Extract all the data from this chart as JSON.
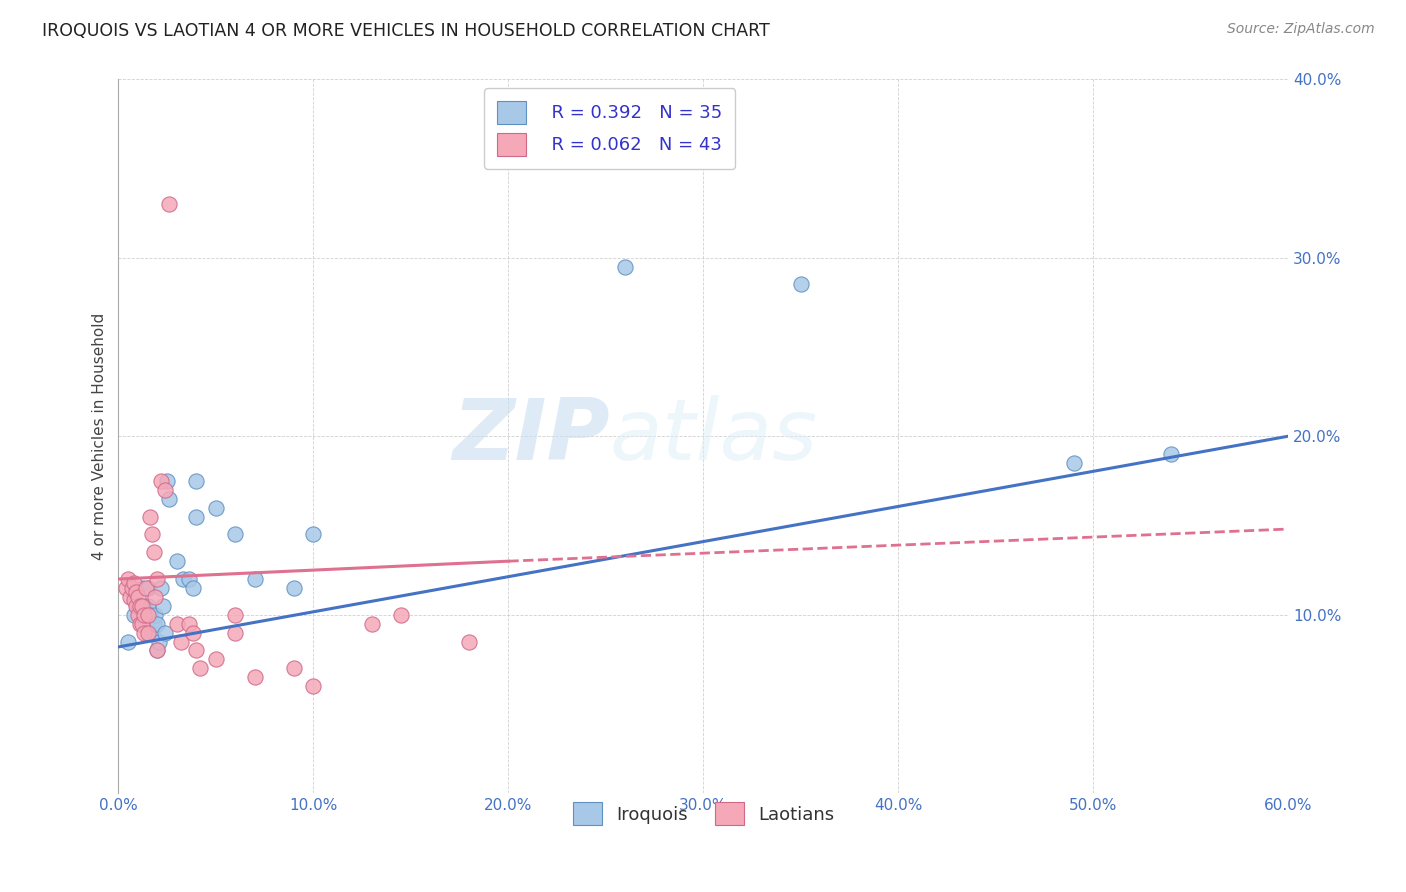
{
  "title": "IROQUOIS VS LAOTIAN 4 OR MORE VEHICLES IN HOUSEHOLD CORRELATION CHART",
  "source": "Source: ZipAtlas.com",
  "ylabel": "4 or more Vehicles in Household",
  "xlabel": "",
  "xlim": [
    0.0,
    0.6
  ],
  "ylim": [
    0.0,
    0.4
  ],
  "xtick_vals": [
    0.0,
    0.1,
    0.2,
    0.3,
    0.4,
    0.5,
    0.6
  ],
  "ytick_vals": [
    0.0,
    0.1,
    0.2,
    0.3,
    0.4
  ],
  "background_color": "#ffffff",
  "watermark_zip": "ZIP",
  "watermark_atlas": "atlas",
  "legend_r_iroquois": "R = 0.392",
  "legend_n_iroquois": "N = 35",
  "legend_r_laotian": "R = 0.062",
  "legend_n_laotian": "N = 43",
  "iroquois_color": "#a8c8e8",
  "laotian_color": "#f4a8b8",
  "iroquois_edge": "#6090c0",
  "laotian_edge": "#d06888",
  "iroquois_line_color": "#4472c4",
  "laotian_line_color": "#e07090",
  "iroquois_scatter": [
    [
      0.005,
      0.085
    ],
    [
      0.008,
      0.1
    ],
    [
      0.01,
      0.105
    ],
    [
      0.012,
      0.115
    ],
    [
      0.013,
      0.105
    ],
    [
      0.014,
      0.095
    ],
    [
      0.015,
      0.105
    ],
    [
      0.015,
      0.115
    ],
    [
      0.016,
      0.1
    ],
    [
      0.017,
      0.09
    ],
    [
      0.018,
      0.095
    ],
    [
      0.019,
      0.1
    ],
    [
      0.02,
      0.08
    ],
    [
      0.02,
      0.095
    ],
    [
      0.021,
      0.085
    ],
    [
      0.022,
      0.115
    ],
    [
      0.023,
      0.105
    ],
    [
      0.024,
      0.09
    ],
    [
      0.025,
      0.175
    ],
    [
      0.026,
      0.165
    ],
    [
      0.03,
      0.13
    ],
    [
      0.033,
      0.12
    ],
    [
      0.036,
      0.12
    ],
    [
      0.038,
      0.115
    ],
    [
      0.04,
      0.175
    ],
    [
      0.04,
      0.155
    ],
    [
      0.05,
      0.16
    ],
    [
      0.06,
      0.145
    ],
    [
      0.07,
      0.12
    ],
    [
      0.09,
      0.115
    ],
    [
      0.1,
      0.145
    ],
    [
      0.26,
      0.295
    ],
    [
      0.35,
      0.285
    ],
    [
      0.49,
      0.185
    ],
    [
      0.54,
      0.19
    ]
  ],
  "laotian_scatter": [
    [
      0.004,
      0.115
    ],
    [
      0.005,
      0.12
    ],
    [
      0.006,
      0.11
    ],
    [
      0.007,
      0.115
    ],
    [
      0.008,
      0.108
    ],
    [
      0.008,
      0.118
    ],
    [
      0.009,
      0.113
    ],
    [
      0.009,
      0.105
    ],
    [
      0.01,
      0.11
    ],
    [
      0.01,
      0.1
    ],
    [
      0.011,
      0.095
    ],
    [
      0.011,
      0.105
    ],
    [
      0.012,
      0.095
    ],
    [
      0.012,
      0.105
    ],
    [
      0.013,
      0.1
    ],
    [
      0.013,
      0.09
    ],
    [
      0.014,
      0.115
    ],
    [
      0.015,
      0.1
    ],
    [
      0.015,
      0.09
    ],
    [
      0.016,
      0.155
    ],
    [
      0.017,
      0.145
    ],
    [
      0.018,
      0.135
    ],
    [
      0.019,
      0.11
    ],
    [
      0.02,
      0.12
    ],
    [
      0.02,
      0.08
    ],
    [
      0.022,
      0.175
    ],
    [
      0.024,
      0.17
    ],
    [
      0.026,
      0.33
    ],
    [
      0.03,
      0.095
    ],
    [
      0.032,
      0.085
    ],
    [
      0.036,
      0.095
    ],
    [
      0.038,
      0.09
    ],
    [
      0.04,
      0.08
    ],
    [
      0.042,
      0.07
    ],
    [
      0.05,
      0.075
    ],
    [
      0.06,
      0.1
    ],
    [
      0.06,
      0.09
    ],
    [
      0.07,
      0.065
    ],
    [
      0.09,
      0.07
    ],
    [
      0.1,
      0.06
    ],
    [
      0.13,
      0.095
    ],
    [
      0.145,
      0.1
    ],
    [
      0.18,
      0.085
    ]
  ],
  "iroquois_trendline_solid": [
    [
      0.0,
      0.082
    ],
    [
      0.6,
      0.2
    ]
  ],
  "laotian_trendline_solid": [
    [
      0.0,
      0.12
    ],
    [
      0.2,
      0.13
    ]
  ],
  "laotian_trendline_dashed": [
    [
      0.2,
      0.13
    ],
    [
      0.6,
      0.148
    ]
  ]
}
